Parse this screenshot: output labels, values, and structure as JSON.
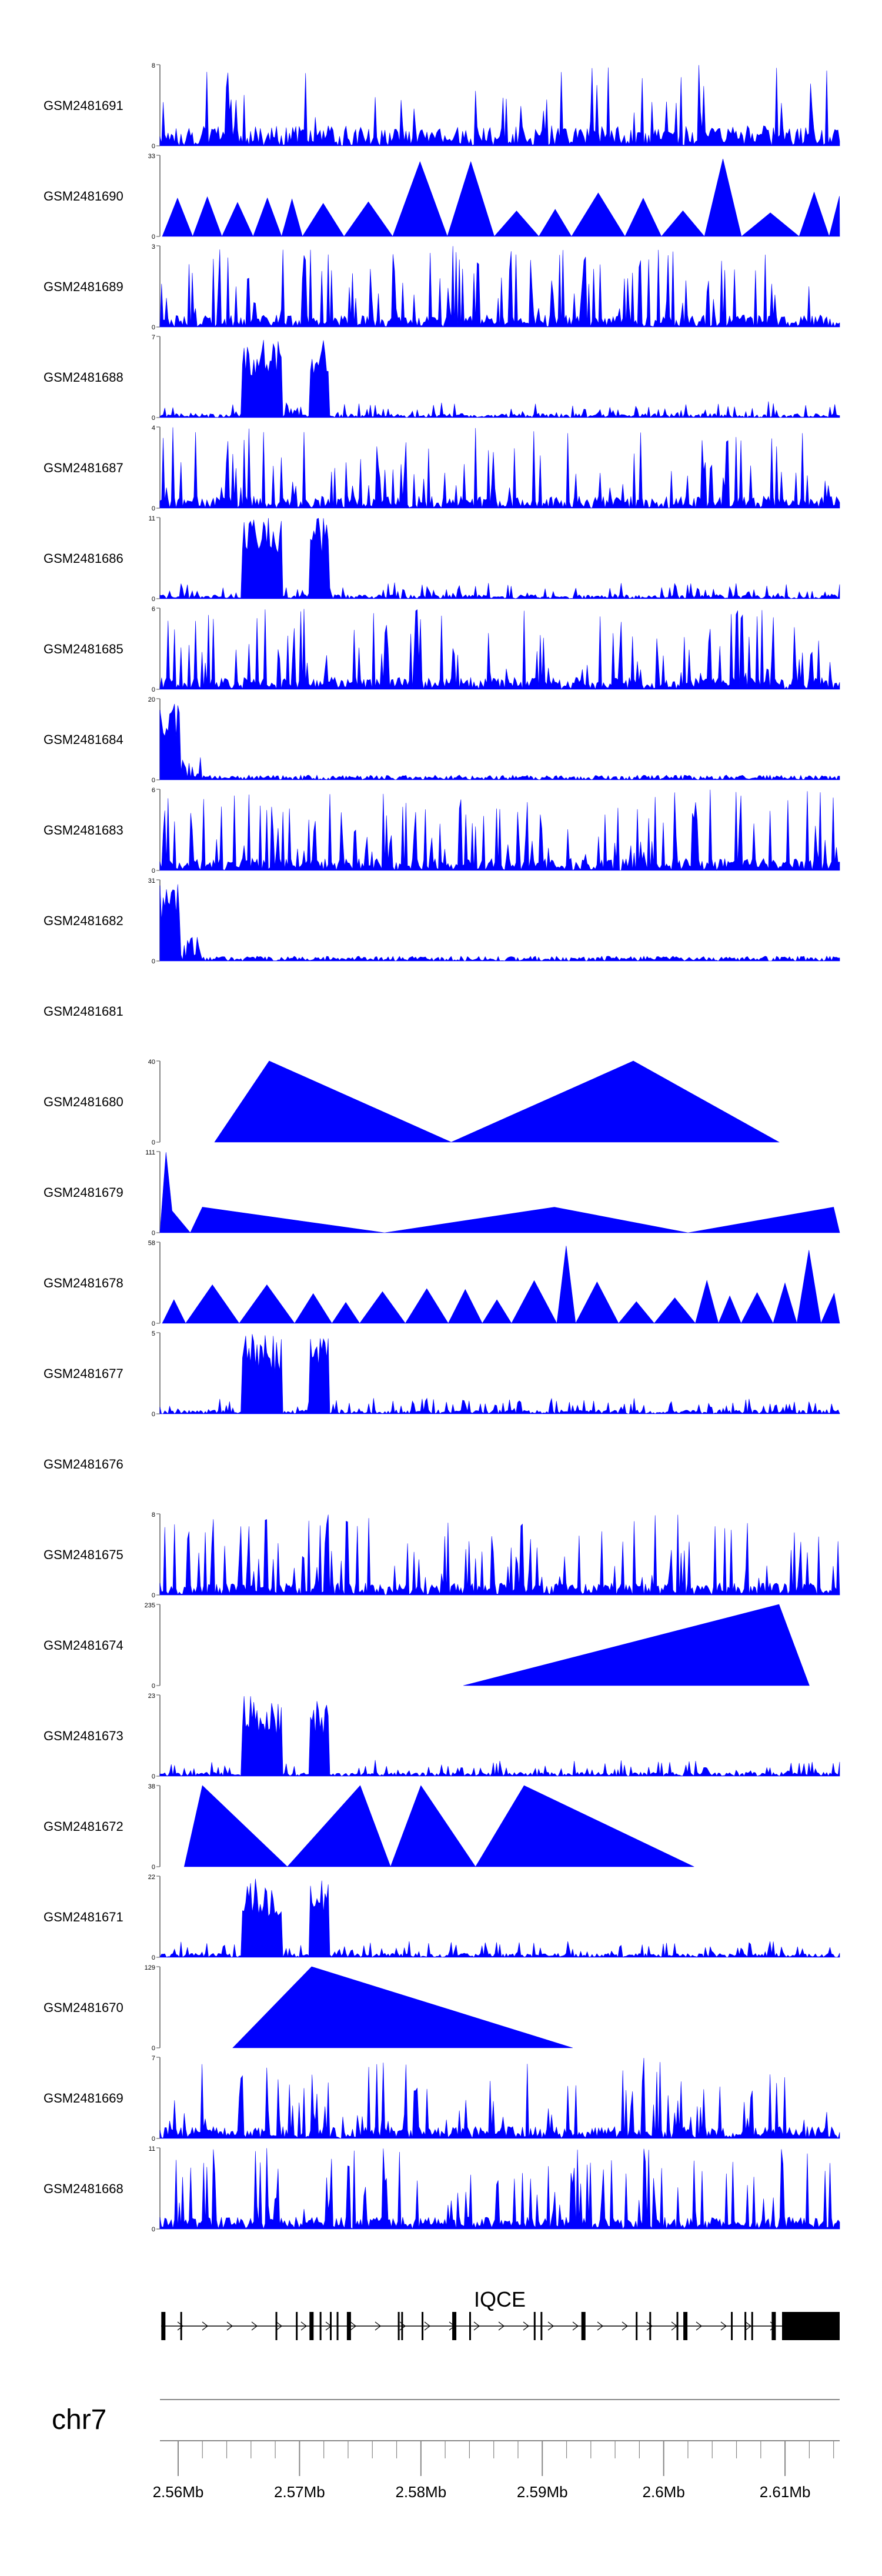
{
  "chart_data": {
    "type": "area",
    "x_domain": [
      2.5585,
      2.6145
    ],
    "color": "#0000ff",
    "tracks": [
      {
        "name": "GSM2481691",
        "ymax": 8,
        "profile": "a"
      },
      {
        "name": "GSM2481690",
        "ymax": 33,
        "profile": "tri"
      },
      {
        "name": "GSM2481689",
        "ymax": 3,
        "profile": "c"
      },
      {
        "name": "GSM2481688",
        "ymax": 7,
        "profile": "b"
      },
      {
        "name": "GSM2481687",
        "ymax": 4,
        "profile": "c"
      },
      {
        "name": "GSM2481686",
        "ymax": 11,
        "profile": "b"
      },
      {
        "name": "GSM2481685",
        "ymax": 6,
        "profile": "c"
      },
      {
        "name": "GSM2481684",
        "ymax": 20,
        "profile": "d"
      },
      {
        "name": "GSM2481683",
        "ymax": 6,
        "profile": "c"
      },
      {
        "name": "GSM2481682",
        "ymax": 31,
        "profile": "d"
      },
      {
        "name": "GSM2481681",
        "ymax": null,
        "profile": "none"
      },
      {
        "name": "GSM2481680",
        "ymax": 40,
        "profile": "peaks",
        "points": [
          [
            2.563,
            0
          ],
          [
            2.5675,
            40
          ],
          [
            2.5825,
            0
          ],
          [
            2.5975,
            40
          ],
          [
            2.6095,
            0
          ]
        ]
      },
      {
        "name": "GSM2481679",
        "ymax": 111,
        "profile": "peaks",
        "points": [
          [
            2.5585,
            0
          ],
          [
            2.559,
            110
          ],
          [
            2.5595,
            30
          ],
          [
            2.561,
            0
          ],
          [
            2.562,
            35
          ],
          [
            2.577,
            0
          ],
          [
            2.591,
            35
          ],
          [
            2.602,
            0
          ],
          [
            2.614,
            35
          ],
          [
            2.6145,
            0
          ]
        ]
      },
      {
        "name": "GSM2481678",
        "ymax": 58,
        "profile": "tri"
      },
      {
        "name": "GSM2481677",
        "ymax": 5,
        "profile": "b"
      },
      {
        "name": "GSM2481676",
        "ymax": null,
        "profile": "none"
      },
      {
        "name": "GSM2481675",
        "ymax": 8,
        "profile": "c"
      },
      {
        "name": "GSM2481674",
        "ymax": 235,
        "profile": "peaks",
        "points": [
          [
            2.5835,
            0
          ],
          [
            2.6095,
            235
          ],
          [
            2.612,
            0
          ]
        ]
      },
      {
        "name": "GSM2481673",
        "ymax": 23,
        "profile": "b"
      },
      {
        "name": "GSM2481672",
        "ymax": 38,
        "profile": "peaks",
        "points": [
          [
            2.5605,
            0
          ],
          [
            2.562,
            38
          ],
          [
            2.569,
            0
          ],
          [
            2.575,
            38
          ],
          [
            2.5775,
            0
          ],
          [
            2.58,
            38
          ],
          [
            2.5845,
            0
          ],
          [
            2.5885,
            38
          ],
          [
            2.6025,
            0
          ]
        ]
      },
      {
        "name": "GSM2481671",
        "ymax": 22,
        "profile": "b"
      },
      {
        "name": "GSM2481670",
        "ymax": 129,
        "profile": "peaks",
        "points": [
          [
            2.5645,
            0
          ],
          [
            2.571,
            129
          ],
          [
            2.5925,
            0
          ]
        ]
      },
      {
        "name": "GSM2481669",
        "ymax": 7,
        "profile": "c"
      },
      {
        "name": "GSM2481668",
        "ymax": 11,
        "profile": "c"
      }
    ],
    "gene": {
      "name": "IQCE"
    },
    "chromosome": "chr7",
    "x_ticks": [
      {
        "value": 2.56,
        "label": "2.56Mb"
      },
      {
        "value": 2.57,
        "label": "2.57Mb"
      },
      {
        "value": 2.58,
        "label": "2.58Mb"
      },
      {
        "value": 2.59,
        "label": "2.59Mb"
      },
      {
        "value": 2.6,
        "label": "2.6Mb"
      },
      {
        "value": 2.61,
        "label": "2.61Mb"
      }
    ]
  }
}
